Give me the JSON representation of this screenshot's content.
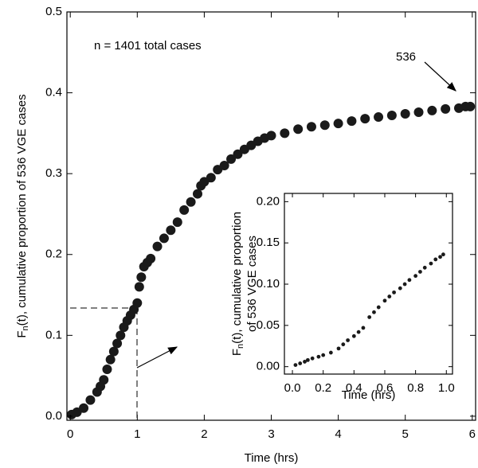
{
  "chart_data": [
    {
      "type": "scatter",
      "color": "#1a1a1a",
      "xlabel": "Time (hrs)",
      "ylabel": {
        "main": "F",
        "sub": "n",
        "rest": "(t), cumulative proportion of 536 VGE cases"
      },
      "xlim": [
        -0.05,
        6.05
      ],
      "ylim": [
        -0.005,
        0.5
      ],
      "xticks": [
        0,
        1,
        2,
        3,
        4,
        5,
        6
      ],
      "yticks": [
        {
          "value": 0,
          "label": "0.0"
        },
        0.1,
        0.2,
        0.3,
        0.4,
        0.5
      ],
      "annotations": [
        "n = 1401 total cases",
        "536"
      ],
      "x": [
        0.02,
        0.1,
        0.2,
        0.3,
        0.4,
        0.45,
        0.5,
        0.55,
        0.6,
        0.65,
        0.7,
        0.75,
        0.8,
        0.85,
        0.9,
        0.95,
        1.0,
        1.03,
        1.06,
        1.1,
        1.15,
        1.2,
        1.3,
        1.4,
        1.5,
        1.6,
        1.7,
        1.8,
        1.9,
        1.95,
        2.0,
        2.1,
        2.2,
        2.3,
        2.4,
        2.5,
        2.6,
        2.7,
        2.8,
        2.9,
        3.0,
        3.2,
        3.4,
        3.6,
        3.8,
        4.0,
        4.2,
        4.4,
        4.6,
        4.8,
        5.0,
        5.2,
        5.4,
        5.6,
        5.8,
        5.9,
        5.97
      ],
      "values": [
        0.002,
        0.005,
        0.01,
        0.02,
        0.03,
        0.037,
        0.045,
        0.058,
        0.07,
        0.08,
        0.09,
        0.1,
        0.11,
        0.118,
        0.125,
        0.132,
        0.14,
        0.16,
        0.172,
        0.185,
        0.19,
        0.195,
        0.21,
        0.22,
        0.23,
        0.24,
        0.255,
        0.265,
        0.275,
        0.285,
        0.29,
        0.295,
        0.305,
        0.31,
        0.318,
        0.324,
        0.33,
        0.335,
        0.34,
        0.344,
        0.347,
        0.35,
        0.355,
        0.358,
        0.36,
        0.362,
        0.365,
        0.368,
        0.37,
        0.372,
        0.374,
        0.376,
        0.378,
        0.38,
        0.381,
        0.383,
        0.383
      ]
    },
    {
      "type": "scatter",
      "color": "#1a1a1a",
      "xlabel": "Time (hrs)",
      "ylabel": {
        "main": "F",
        "sub": "n",
        "rest": "(t), cumulative proportion",
        "line2": "of 536 VGE cases"
      },
      "xlim": [
        -0.052,
        1.04
      ],
      "ylim": [
        -0.009,
        0.21
      ],
      "xticks": [
        {
          "value": 0,
          "label": "0.0"
        },
        0.2,
        0.4,
        0.6,
        0.8,
        {
          "value": 1,
          "label": "1.0"
        }
      ],
      "yticks": [
        {
          "value": 0,
          "label": "0.00"
        },
        0.05,
        {
          "value": 0.1,
          "label": "0.10"
        },
        0.15,
        {
          "value": 0.2,
          "label": "0.20"
        }
      ],
      "x": [
        0.02,
        0.05,
        0.08,
        0.1,
        0.13,
        0.17,
        0.2,
        0.25,
        0.3,
        0.33,
        0.36,
        0.4,
        0.43,
        0.46,
        0.5,
        0.53,
        0.56,
        0.6,
        0.63,
        0.66,
        0.7,
        0.73,
        0.76,
        0.8,
        0.83,
        0.86,
        0.9,
        0.93,
        0.96,
        0.98
      ],
      "values": [
        0.002,
        0.004,
        0.006,
        0.008,
        0.01,
        0.012,
        0.014,
        0.017,
        0.022,
        0.027,
        0.032,
        0.037,
        0.042,
        0.047,
        0.06,
        0.066,
        0.072,
        0.08,
        0.085,
        0.09,
        0.095,
        0.1,
        0.105,
        0.11,
        0.115,
        0.12,
        0.125,
        0.13,
        0.133,
        0.136
      ]
    }
  ]
}
